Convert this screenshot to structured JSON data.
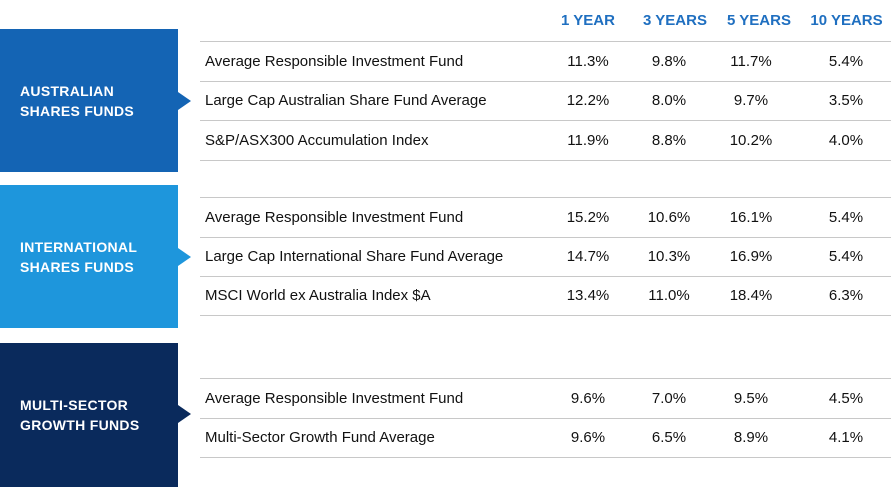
{
  "colors": {
    "header_text": "#1f6fc0",
    "australian_panel": "#1464b4",
    "international_panel": "#1e96dc",
    "multisector_panel": "#0a2a5c",
    "row_border": "#c8c8c8"
  },
  "chart_data": {
    "type": "table",
    "columns": [
      "1 YEAR",
      "3 YEARS",
      "5 YEARS",
      "10 YEARS"
    ],
    "groups": [
      {
        "label_lines": [
          "AUSTRALIAN",
          "SHARES FUNDS"
        ],
        "rows": [
          {
            "name": "Average Responsible Investment Fund",
            "values": [
              "11.3%",
              "9.8%",
              "11.7%",
              "5.4%"
            ]
          },
          {
            "name": "Large  Cap Australian Share Fund Average",
            "values": [
              "12.2%",
              "8.0%",
              "9.7%",
              "3.5%"
            ]
          },
          {
            "name": "S&P/ASX300 Accumulation Index",
            "values": [
              "11.9%",
              "8.8%",
              "10.2%",
              "4.0%"
            ]
          }
        ]
      },
      {
        "label_lines": [
          "INTERNATIONAL",
          "SHARES FUNDS"
        ],
        "rows": [
          {
            "name": "Average Responsible Investment Fund",
            "values": [
              "15.2%",
              "10.6%",
              "16.1%",
              "5.4%"
            ]
          },
          {
            "name": "Large  Cap International Share Fund Average",
            "values": [
              "14.7%",
              "10.3%",
              "16.9%",
              "5.4%"
            ]
          },
          {
            "name": "MSCI World ex Australia Index $A",
            "values": [
              "13.4%",
              "11.0%",
              "18.4%",
              "6.3%"
            ]
          }
        ]
      },
      {
        "label_lines": [
          "MULTI-SECTOR",
          "GROWTH FUNDS"
        ],
        "rows": [
          {
            "name": "Average Responsible Investment Fund",
            "values": [
              "9.6%",
              "7.0%",
              "9.5%",
              "4.5%"
            ]
          },
          {
            "name": "Multi-Sector Growth Fund Average",
            "values": [
              "9.6%",
              "6.5%",
              "8.9%",
              "4.1%"
            ]
          }
        ]
      }
    ]
  }
}
